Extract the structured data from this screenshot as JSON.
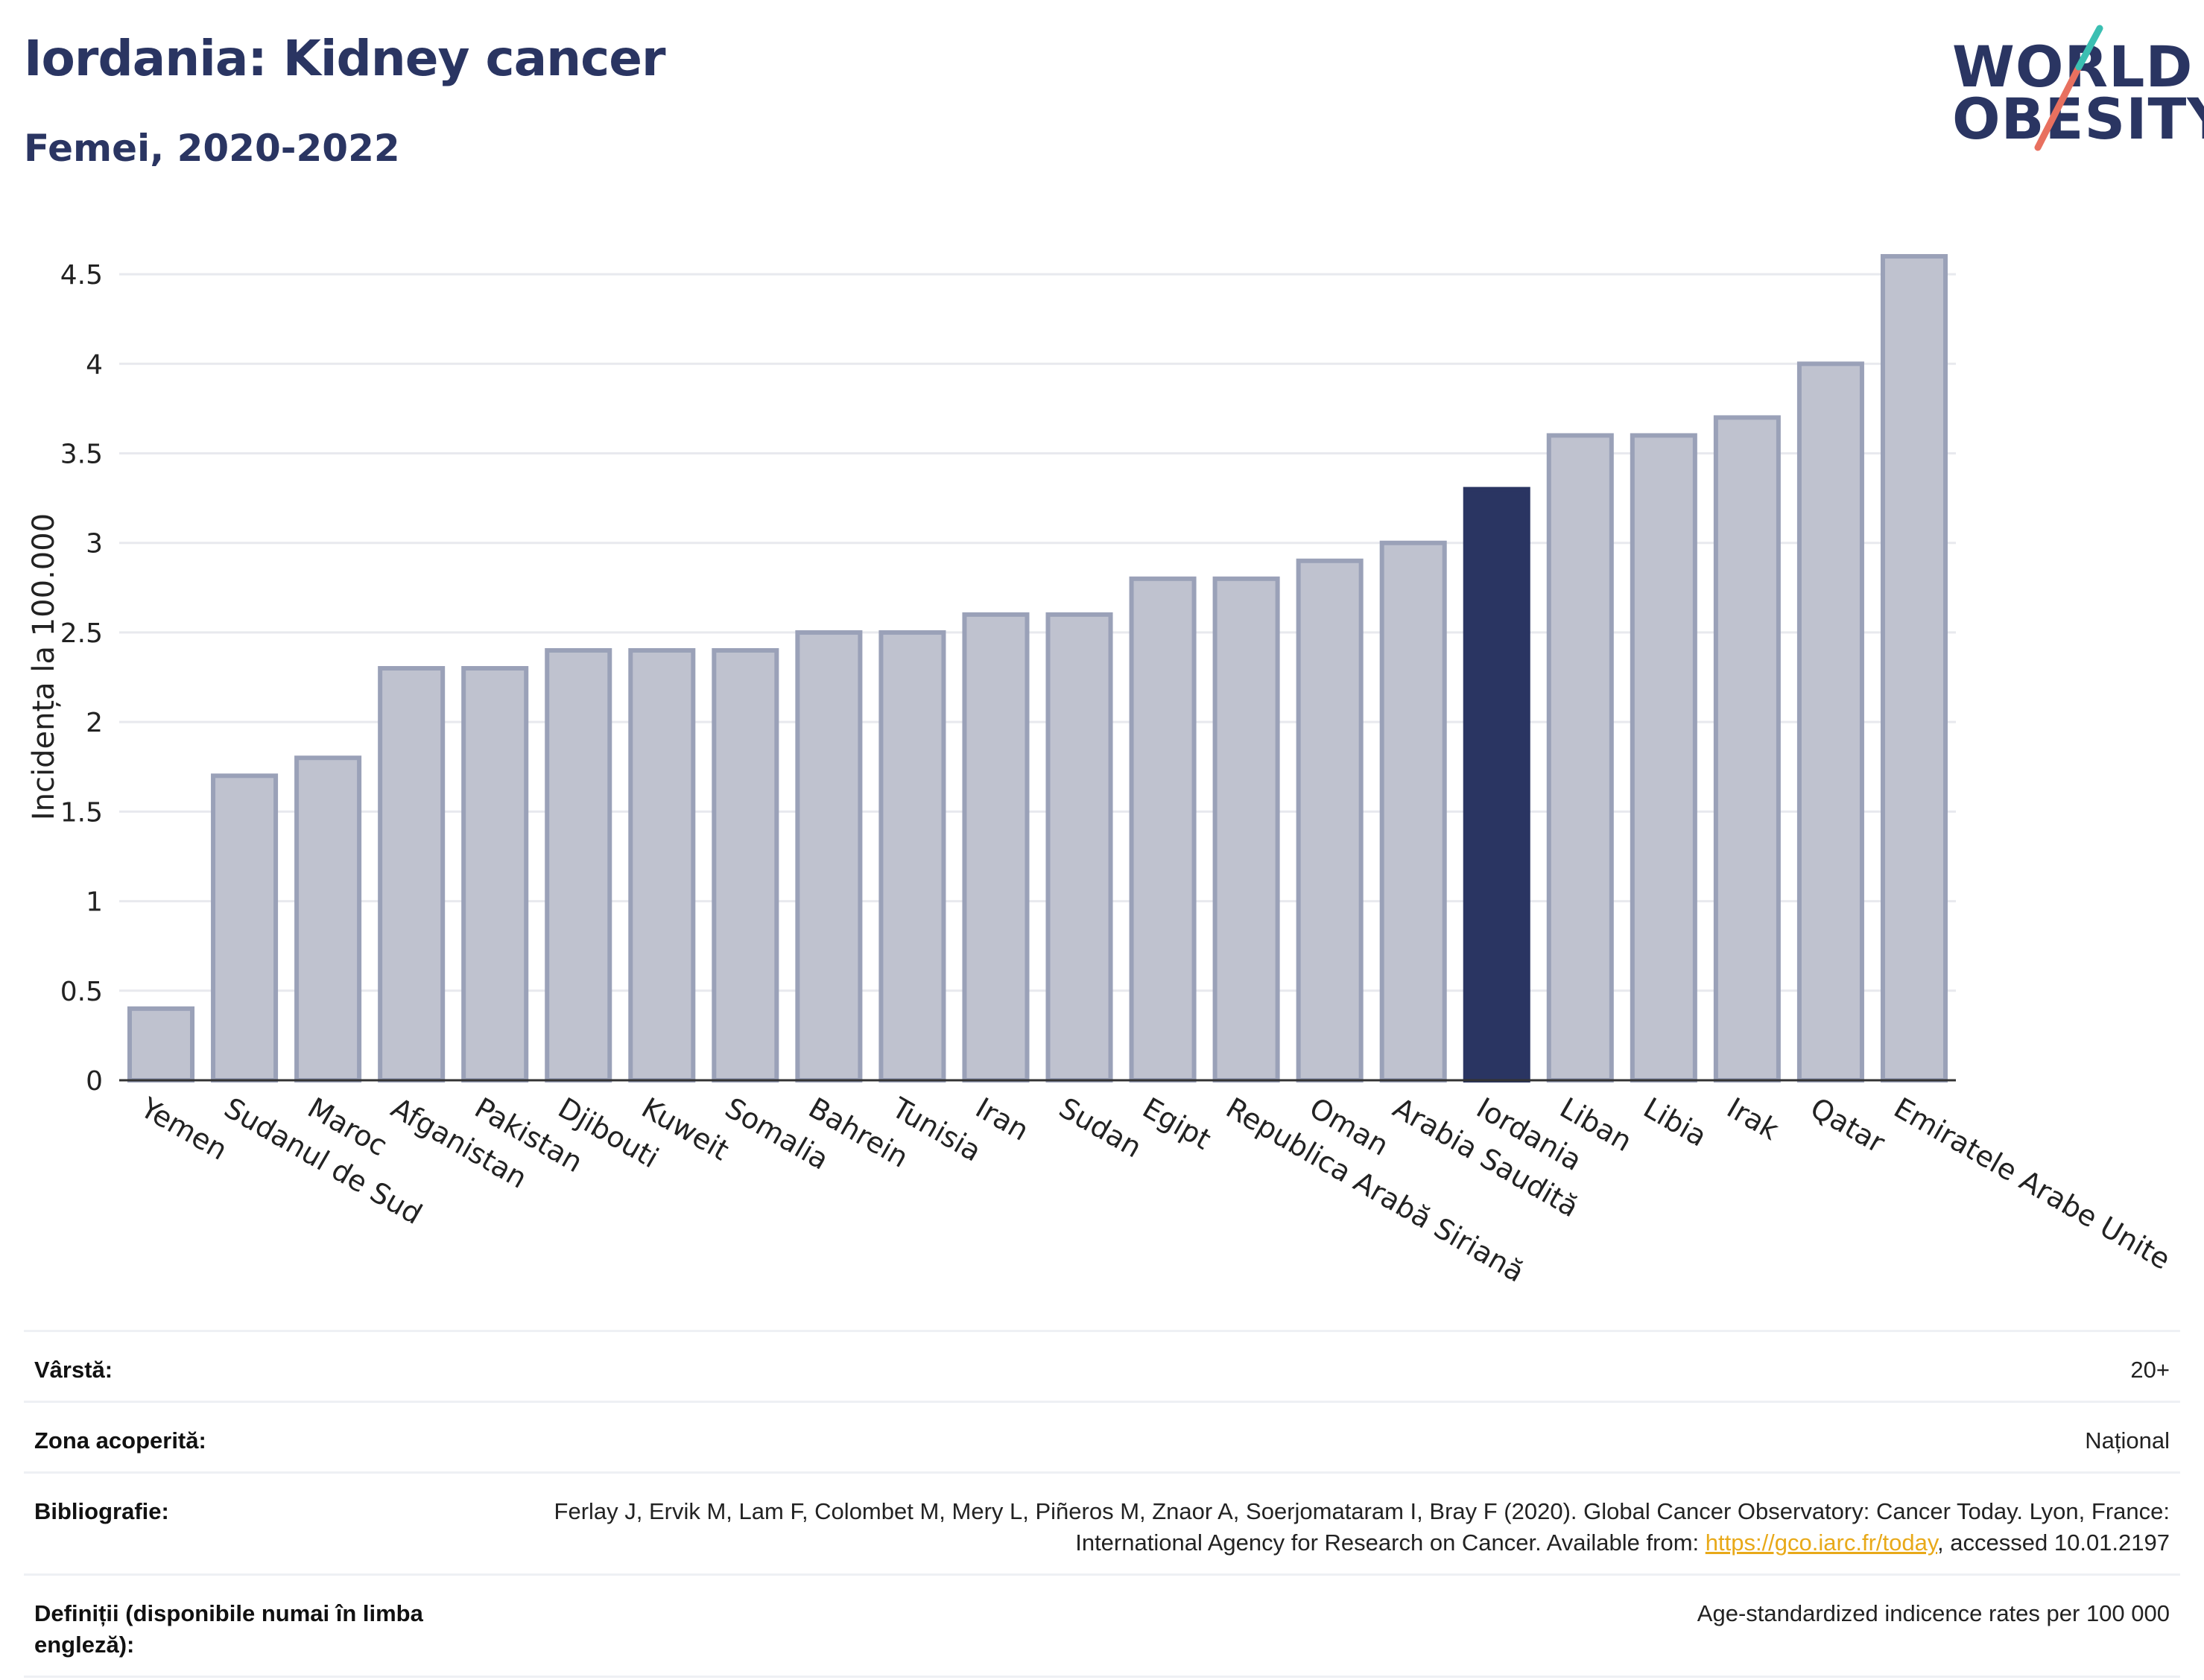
{
  "title": "Iordania: Kidney cancer",
  "subtitle": "Femei, 2020-2022",
  "logo": {
    "line1": "WORLD",
    "line2": "OBESITY"
  },
  "chart_data": {
    "type": "bar",
    "title": "Iordania: Kidney cancer",
    "subtitle": "Femei, 2020-2022",
    "xlabel": "",
    "ylabel": "Incidența la 100.000",
    "ylim": [
      0,
      4.7
    ],
    "yticks": [
      0,
      0.5,
      1,
      1.5,
      2,
      2.5,
      3,
      3.5,
      4,
      4.5
    ],
    "ytick_labels": [
      "0",
      "0.5",
      "1",
      "1.5",
      "2",
      "2.5",
      "3",
      "3.5",
      "4",
      "4.5"
    ],
    "grid": true,
    "highlight": "Iordania",
    "colors": {
      "bar": "#bfc2cf",
      "bar_border": "#9aa1b8",
      "highlight": "#2a3562",
      "grid": "#e8e9ee"
    },
    "categories": [
      "Yemen",
      "Sudanul de Sud",
      "Maroc",
      "Afganistan",
      "Pakistan",
      "Djibouti",
      "Kuweit",
      "Somalia",
      "Bahrein",
      "Tunisia",
      "Iran",
      "Sudan",
      "Egipt",
      "Republica Arabă Siriană",
      "Oman",
      "Arabia Saudită",
      "Iordania",
      "Liban",
      "Libia",
      "Irak",
      "Qatar",
      "Emiratele Arabe Unite"
    ],
    "values": [
      0.4,
      1.7,
      1.8,
      2.3,
      2.3,
      2.4,
      2.4,
      2.4,
      2.5,
      2.5,
      2.6,
      2.6,
      2.8,
      2.8,
      2.9,
      3.0,
      3.3,
      3.6,
      3.6,
      3.7,
      4.0,
      4.6
    ]
  },
  "meta": [
    {
      "key": "Vârstă:",
      "value": "20+"
    },
    {
      "key": "Zona acoperită:",
      "value": "Național"
    },
    {
      "key": "Bibliografie:",
      "value_pre": "Ferlay J, Ervik M, Lam F, Colombet M, Mery L, Piñeros M, Znaor A, Soerjomataram I, Bray F (2020). Global Cancer Observatory: Cancer Today. Lyon, France: International Agency for Research on Cancer. Available from: ",
      "link": "https://gco.iarc.fr/today",
      "value_post": ", accessed 10.01.2197"
    },
    {
      "key": "Definiții (disponibile numai în limba engleză):",
      "value": "Age-standardized indicence rates per 100 000"
    }
  ]
}
